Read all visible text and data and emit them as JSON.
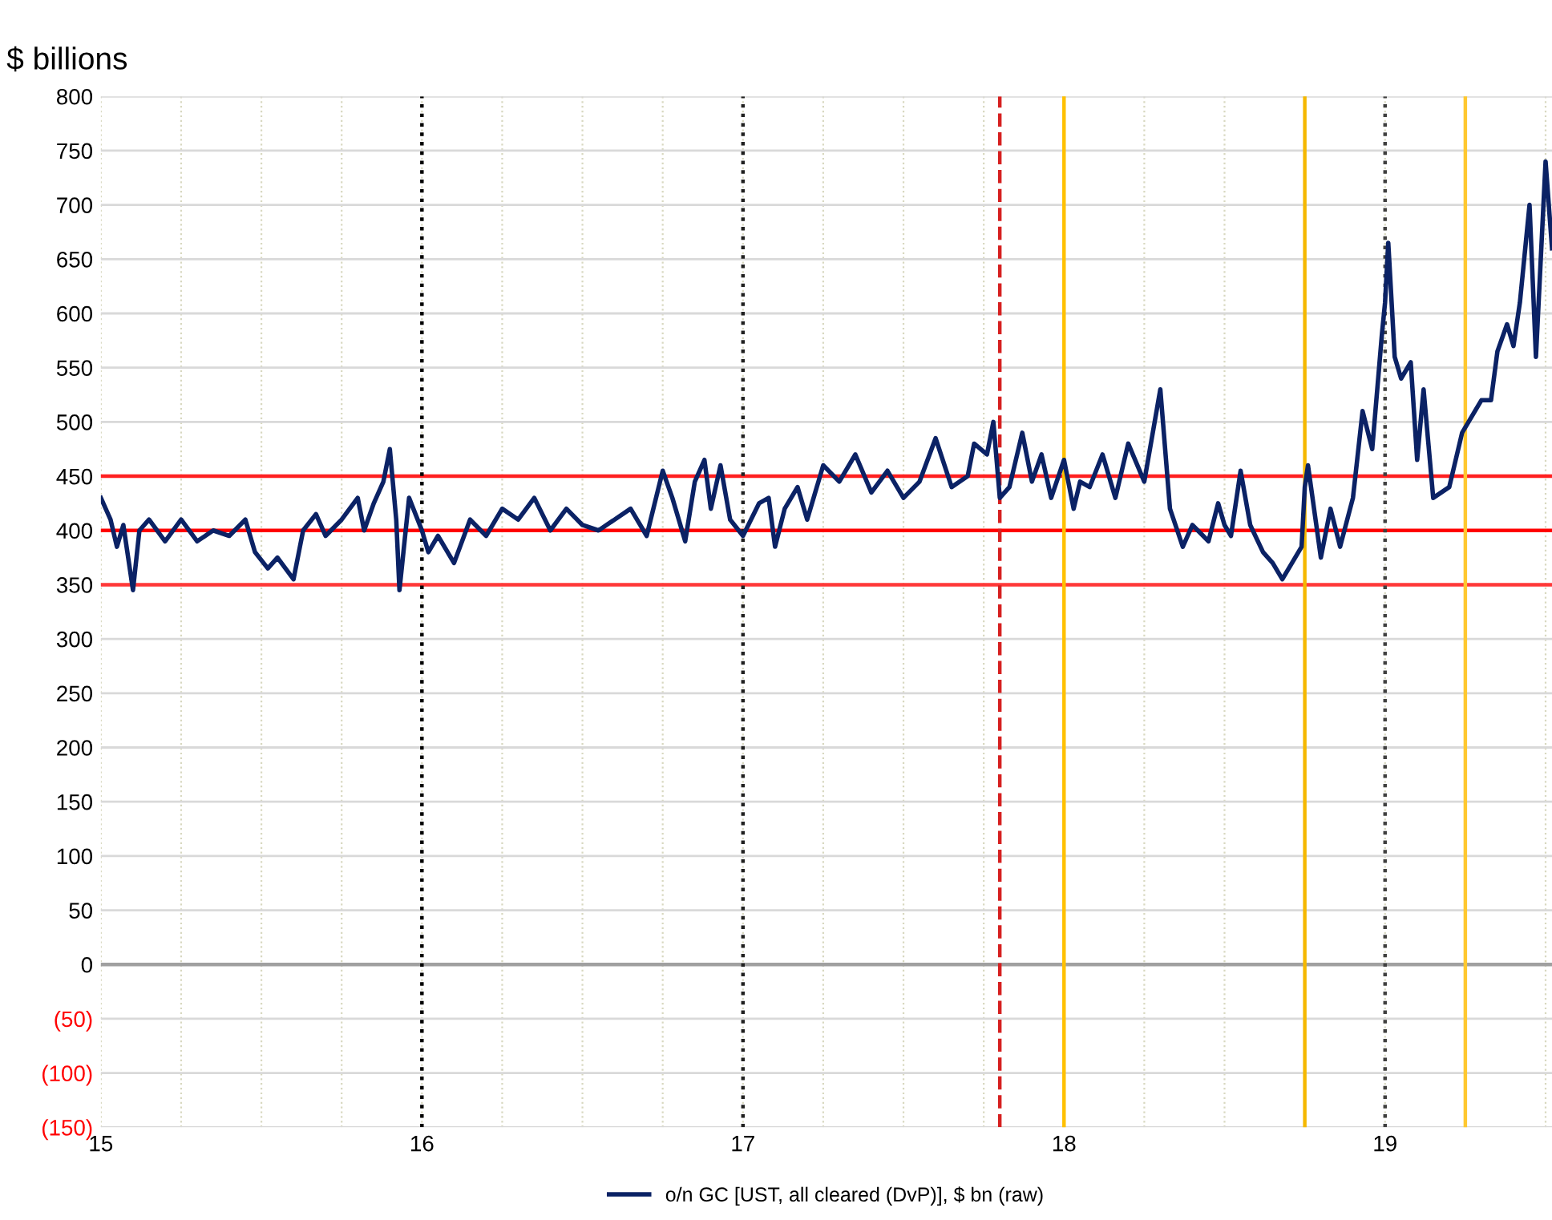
{
  "chart_data": {
    "type": "line",
    "ylabel": "$ billions",
    "x": [
      15.0,
      15.03,
      15.05,
      15.07,
      15.1,
      15.12,
      15.15,
      15.2,
      15.25,
      15.3,
      15.35,
      15.4,
      15.45,
      15.48,
      15.52,
      15.55,
      15.6,
      15.63,
      15.67,
      15.7,
      15.75,
      15.8,
      15.82,
      15.85,
      15.88,
      15.9,
      15.92,
      15.93,
      15.96,
      16.0,
      16.02,
      16.05,
      16.1,
      16.15,
      16.2,
      16.25,
      16.3,
      16.35,
      16.4,
      16.45,
      16.5,
      16.55,
      16.6,
      16.65,
      16.7,
      16.75,
      16.78,
      16.82,
      16.85,
      16.88,
      16.9,
      16.93,
      16.96,
      17.0,
      17.05,
      17.08,
      17.1,
      17.13,
      17.17,
      17.2,
      17.25,
      17.3,
      17.35,
      17.4,
      17.45,
      17.5,
      17.55,
      17.6,
      17.65,
      17.7,
      17.72,
      17.76,
      17.78,
      17.8,
      17.83,
      17.87,
      17.9,
      17.93,
      17.96,
      18.0,
      18.03,
      18.05,
      18.08,
      18.12,
      18.16,
      18.2,
      18.25,
      18.3,
      18.33,
      18.37,
      18.4,
      18.45,
      18.48,
      18.5,
      18.52,
      18.55,
      18.58,
      18.62,
      18.65,
      18.68,
      18.72,
      18.74,
      18.75,
      18.76,
      18.8,
      18.83,
      18.86,
      18.9,
      18.93,
      18.96,
      18.99,
      19.0,
      19.01,
      19.03,
      19.05,
      19.08,
      19.1,
      19.12,
      19.15,
      19.2,
      19.24,
      19.26,
      19.3,
      19.33,
      19.35,
      19.38,
      19.4,
      19.42,
      19.45,
      19.47,
      19.5,
      19.52
    ],
    "series": [
      {
        "name": "o/n GC [UST, all cleared (DvP)], $ bn (raw)",
        "color": "#0b2265",
        "values": [
          430,
          410,
          385,
          405,
          345,
          400,
          410,
          390,
          410,
          390,
          400,
          395,
          410,
          380,
          365,
          375,
          355,
          400,
          415,
          395,
          410,
          430,
          400,
          425,
          445,
          475,
          410,
          345,
          430,
          400,
          380,
          395,
          370,
          410,
          395,
          420,
          410,
          430,
          400,
          420,
          405,
          400,
          410,
          420,
          395,
          455,
          430,
          390,
          445,
          465,
          420,
          460,
          410,
          395,
          425,
          430,
          385,
          420,
          440,
          410,
          460,
          445,
          470,
          435,
          455,
          430,
          445,
          485,
          440,
          450,
          480,
          470,
          500,
          430,
          440,
          490,
          445,
          470,
          430,
          465,
          420,
          445,
          440,
          470,
          430,
          480,
          445,
          530,
          420,
          385,
          405,
          390,
          425,
          405,
          395,
          455,
          405,
          380,
          370,
          355,
          375,
          385,
          440,
          460,
          375,
          420,
          385,
          430,
          510,
          475,
          580,
          610,
          665,
          560,
          540,
          555,
          465,
          530,
          430,
          440,
          490,
          500,
          520,
          520,
          565,
          590,
          570,
          610,
          700,
          560,
          740,
          660
        ]
      }
    ],
    "xlim": [
      15,
      19.52
    ],
    "xticks": [
      15,
      {
        "value": 15.25,
        "label": null
      },
      {
        "value": 15.5,
        "label": null
      },
      {
        "value": 15.75,
        "label": null
      },
      16,
      {
        "value": 16.25,
        "label": null
      },
      {
        "value": 16.5,
        "label": null
      },
      {
        "value": 16.75,
        "label": null
      },
      17,
      {
        "value": 17.25,
        "label": null
      },
      {
        "value": 17.5,
        "label": null
      },
      {
        "value": 17.75,
        "label": null
      },
      18,
      {
        "value": 18.25,
        "label": null
      },
      {
        "value": 18.5,
        "label": null
      },
      {
        "value": 18.75,
        "label": null
      },
      19,
      {
        "value": 19.25,
        "label": null
      },
      {
        "value": 19.5,
        "label": null
      }
    ],
    "ylim": [
      -150,
      800
    ],
    "yticks": [
      {
        "value": -150,
        "label": "(150)"
      },
      {
        "value": -100,
        "label": "(100)"
      },
      {
        "value": -50,
        "label": "(50)"
      },
      0,
      50,
      100,
      150,
      200,
      250,
      300,
      350,
      400,
      450,
      500,
      550,
      600,
      650,
      700,
      750,
      800
    ],
    "grid": true,
    "legend": "bottom",
    "marker": "none",
    "line_style": "solid",
    "ref_lines": [
      {
        "axis": "y",
        "value": 0,
        "color": "#a0a0a0",
        "line_style": "solid"
      },
      {
        "axis": "y",
        "value": 350,
        "color": "#ff3838",
        "line_style": "solid"
      },
      {
        "axis": "y",
        "value": 400,
        "color": "#ff0000",
        "line_style": "solid"
      },
      {
        "axis": "y",
        "value": 450,
        "color": "#ff2020",
        "line_style": "solid"
      },
      {
        "axis": "x",
        "value": 16,
        "color": "#000000",
        "line_style": "dotted"
      },
      {
        "axis": "x",
        "value": 17,
        "color": "#202020",
        "line_style": "dotted"
      },
      {
        "axis": "x",
        "value": 19,
        "color": "#404040",
        "line_style": "dotted"
      },
      {
        "axis": "x",
        "value": 17.8,
        "color": "#d62020",
        "line_style": "dashed"
      },
      {
        "axis": "x",
        "value": 18,
        "color": "#ffc000",
        "line_style": "solid"
      },
      {
        "axis": "x",
        "value": 18.75,
        "color": "#f5b800",
        "line_style": "solid"
      },
      {
        "axis": "x",
        "value": 19.25,
        "color": "#ffc830",
        "line_style": "solid"
      }
    ]
  }
}
